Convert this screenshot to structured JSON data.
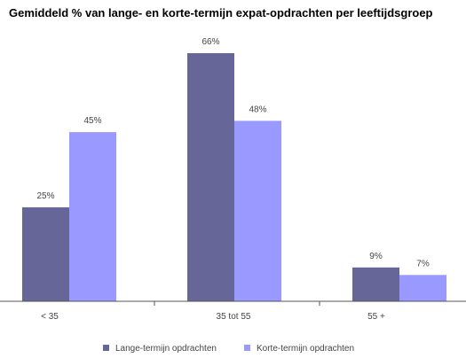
{
  "chart_data": {
    "type": "bar",
    "title": "Gemiddeld % van lange- en korte-termijn expat-opdrachten per leeftijdsgroep",
    "xlabel": "",
    "ylabel": "",
    "categories": [
      "< 35",
      "35 tot 55",
      "55 +"
    ],
    "series": [
      {
        "name": "Lange-termijn opdrachten",
        "values": [
          25,
          66,
          9
        ],
        "labels": [
          "25%",
          "66%",
          "9%"
        ],
        "color": "#666699"
      },
      {
        "name": "Korte-termijn opdrachten",
        "values": [
          45,
          48,
          7
        ],
        "labels": [
          "45%",
          "48%",
          "7%"
        ],
        "color": "#9999ff"
      }
    ],
    "ylim": [
      0,
      70
    ],
    "grid": false,
    "legend_position": "bottom"
  }
}
